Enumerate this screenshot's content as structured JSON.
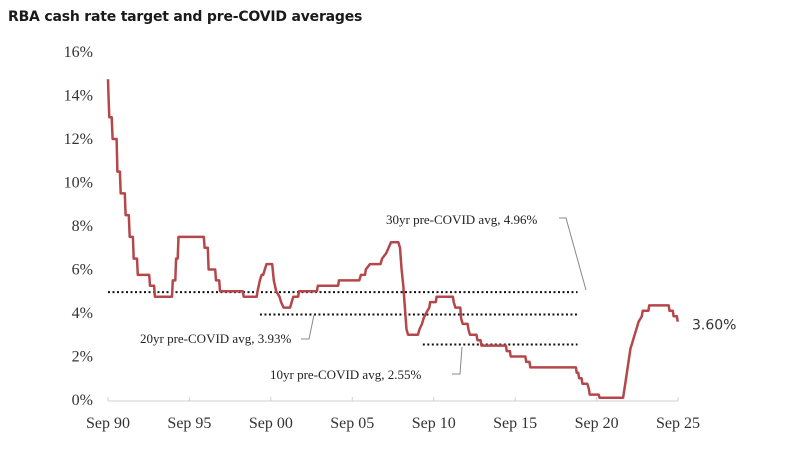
{
  "chart_data": {
    "type": "line",
    "title": "RBA cash rate target and pre-COVID averages",
    "xlabel": "",
    "ylabel": "",
    "ylim": [
      0,
      16
    ],
    "xlim": [
      1990.67,
      2025.67
    ],
    "grid": false,
    "y_ticks": [
      "0%",
      "2%",
      "4%",
      "6%",
      "8%",
      "10%",
      "12%",
      "14%",
      "16%"
    ],
    "y_tick_values": [
      0,
      2,
      4,
      6,
      8,
      10,
      12,
      14,
      16
    ],
    "x_ticks": [
      "Sep 90",
      "Sep 95",
      "Sep 00",
      "Sep 05",
      "Sep 10",
      "Sep 15",
      "Sep 20",
      "Sep 25"
    ],
    "x_tick_values": [
      1990.67,
      1995.67,
      2000.67,
      2005.67,
      2010.67,
      2015.67,
      2020.67,
      2025.67
    ],
    "series": [
      {
        "name": "RBA cash rate target",
        "color": "#b5474b",
        "points": [
          [
            1990.67,
            14.75
          ],
          [
            1990.7,
            14.0
          ],
          [
            1990.75,
            13.0
          ],
          [
            1990.9,
            13.0
          ],
          [
            1990.95,
            12.0
          ],
          [
            1991.2,
            12.0
          ],
          [
            1991.25,
            10.5
          ],
          [
            1991.4,
            10.5
          ],
          [
            1991.45,
            9.5
          ],
          [
            1991.7,
            9.5
          ],
          [
            1991.75,
            8.5
          ],
          [
            1991.95,
            8.5
          ],
          [
            1992.0,
            7.5
          ],
          [
            1992.2,
            7.5
          ],
          [
            1992.25,
            6.5
          ],
          [
            1992.45,
            6.5
          ],
          [
            1992.5,
            5.75
          ],
          [
            1993.2,
            5.75
          ],
          [
            1993.25,
            5.25
          ],
          [
            1993.5,
            5.25
          ],
          [
            1993.55,
            4.75
          ],
          [
            1994.6,
            4.75
          ],
          [
            1994.65,
            5.5
          ],
          [
            1994.8,
            5.5
          ],
          [
            1994.85,
            6.5
          ],
          [
            1994.95,
            6.5
          ],
          [
            1995.0,
            7.5
          ],
          [
            1996.55,
            7.5
          ],
          [
            1996.6,
            7.0
          ],
          [
            1996.8,
            7.0
          ],
          [
            1996.85,
            6.0
          ],
          [
            1997.25,
            6.0
          ],
          [
            1997.3,
            5.5
          ],
          [
            1997.5,
            5.5
          ],
          [
            1997.55,
            5.0
          ],
          [
            1998.95,
            5.0
          ],
          [
            1999.0,
            4.75
          ],
          [
            1999.8,
            4.75
          ],
          [
            1999.85,
            5.0
          ],
          [
            2000.0,
            5.5
          ],
          [
            2000.1,
            5.75
          ],
          [
            2000.2,
            5.75
          ],
          [
            2000.3,
            6.0
          ],
          [
            2000.4,
            6.25
          ],
          [
            2000.75,
            6.25
          ],
          [
            2000.85,
            5.5
          ],
          [
            2001.0,
            5.0
          ],
          [
            2001.2,
            4.75
          ],
          [
            2001.3,
            4.5
          ],
          [
            2001.45,
            4.25
          ],
          [
            2001.85,
            4.25
          ],
          [
            2001.95,
            4.5
          ],
          [
            2002.05,
            4.75
          ],
          [
            2002.35,
            4.75
          ],
          [
            2002.4,
            5.0
          ],
          [
            2003.5,
            5.0
          ],
          [
            2003.55,
            5.25
          ],
          [
            2004.8,
            5.25
          ],
          [
            2004.85,
            5.5
          ],
          [
            2006.1,
            5.5
          ],
          [
            2006.2,
            5.75
          ],
          [
            2006.45,
            5.75
          ],
          [
            2006.5,
            6.0
          ],
          [
            2006.75,
            6.25
          ],
          [
            2007.4,
            6.25
          ],
          [
            2007.5,
            6.5
          ],
          [
            2007.75,
            6.75
          ],
          [
            2007.9,
            7.0
          ],
          [
            2008.05,
            7.25
          ],
          [
            2008.5,
            7.25
          ],
          [
            2008.6,
            7.0
          ],
          [
            2008.7,
            6.0
          ],
          [
            2008.8,
            5.25
          ],
          [
            2008.9,
            4.25
          ],
          [
            2009.0,
            3.25
          ],
          [
            2009.1,
            3.0
          ],
          [
            2009.7,
            3.0
          ],
          [
            2009.8,
            3.25
          ],
          [
            2009.95,
            3.5
          ],
          [
            2010.05,
            3.75
          ],
          [
            2010.2,
            4.0
          ],
          [
            2010.4,
            4.25
          ],
          [
            2010.45,
            4.5
          ],
          [
            2010.8,
            4.5
          ],
          [
            2010.85,
            4.75
          ],
          [
            2011.85,
            4.75
          ],
          [
            2011.9,
            4.5
          ],
          [
            2012.0,
            4.25
          ],
          [
            2012.3,
            4.25
          ],
          [
            2012.35,
            3.75
          ],
          [
            2012.45,
            3.5
          ],
          [
            2012.75,
            3.5
          ],
          [
            2012.8,
            3.25
          ],
          [
            2012.9,
            3.0
          ],
          [
            2013.3,
            3.0
          ],
          [
            2013.35,
            2.75
          ],
          [
            2013.55,
            2.75
          ],
          [
            2013.6,
            2.5
          ],
          [
            2015.1,
            2.5
          ],
          [
            2015.15,
            2.25
          ],
          [
            2015.35,
            2.25
          ],
          [
            2015.4,
            2.0
          ],
          [
            2016.3,
            2.0
          ],
          [
            2016.35,
            1.75
          ],
          [
            2016.55,
            1.75
          ],
          [
            2016.6,
            1.5
          ],
          [
            2019.4,
            1.5
          ],
          [
            2019.45,
            1.25
          ],
          [
            2019.55,
            1.25
          ],
          [
            2019.6,
            1.0
          ],
          [
            2019.75,
            1.0
          ],
          [
            2019.8,
            0.75
          ],
          [
            2020.1,
            0.75
          ],
          [
            2020.2,
            0.5
          ],
          [
            2020.25,
            0.25
          ],
          [
            2020.8,
            0.25
          ],
          [
            2020.85,
            0.1
          ],
          [
            2022.3,
            0.1
          ],
          [
            2022.35,
            0.35
          ],
          [
            2022.45,
            0.85
          ],
          [
            2022.55,
            1.35
          ],
          [
            2022.65,
            1.85
          ],
          [
            2022.75,
            2.35
          ],
          [
            2022.85,
            2.6
          ],
          [
            2022.95,
            2.85
          ],
          [
            2023.05,
            3.1
          ],
          [
            2023.15,
            3.35
          ],
          [
            2023.25,
            3.6
          ],
          [
            2023.45,
            3.85
          ],
          [
            2023.5,
            4.1
          ],
          [
            2023.85,
            4.1
          ],
          [
            2023.9,
            4.35
          ],
          [
            2025.1,
            4.35
          ],
          [
            2025.15,
            4.1
          ],
          [
            2025.35,
            4.1
          ],
          [
            2025.4,
            3.85
          ],
          [
            2025.6,
            3.85
          ],
          [
            2025.65,
            3.6
          ]
        ]
      }
    ],
    "reference_lines": [
      {
        "name": "30yr pre-COVID avg",
        "value": 4.96,
        "x_start": 1990.67,
        "x_end": 2019.5,
        "label": "30yr pre-COVID avg, 4.96%"
      },
      {
        "name": "20yr pre-COVID avg",
        "value": 3.93,
        "x_start": 2000.0,
        "x_end": 2019.5,
        "label": "20yr pre-COVID avg, 3.93%"
      },
      {
        "name": "10yr pre-COVID avg",
        "value": 2.55,
        "x_start": 2010.0,
        "x_end": 2019.5,
        "label": "10yr pre-COVID avg, 2.55%"
      }
    ],
    "annotations": [
      {
        "text": "3.60%",
        "x": 2025.67,
        "y": 3.6
      }
    ]
  }
}
